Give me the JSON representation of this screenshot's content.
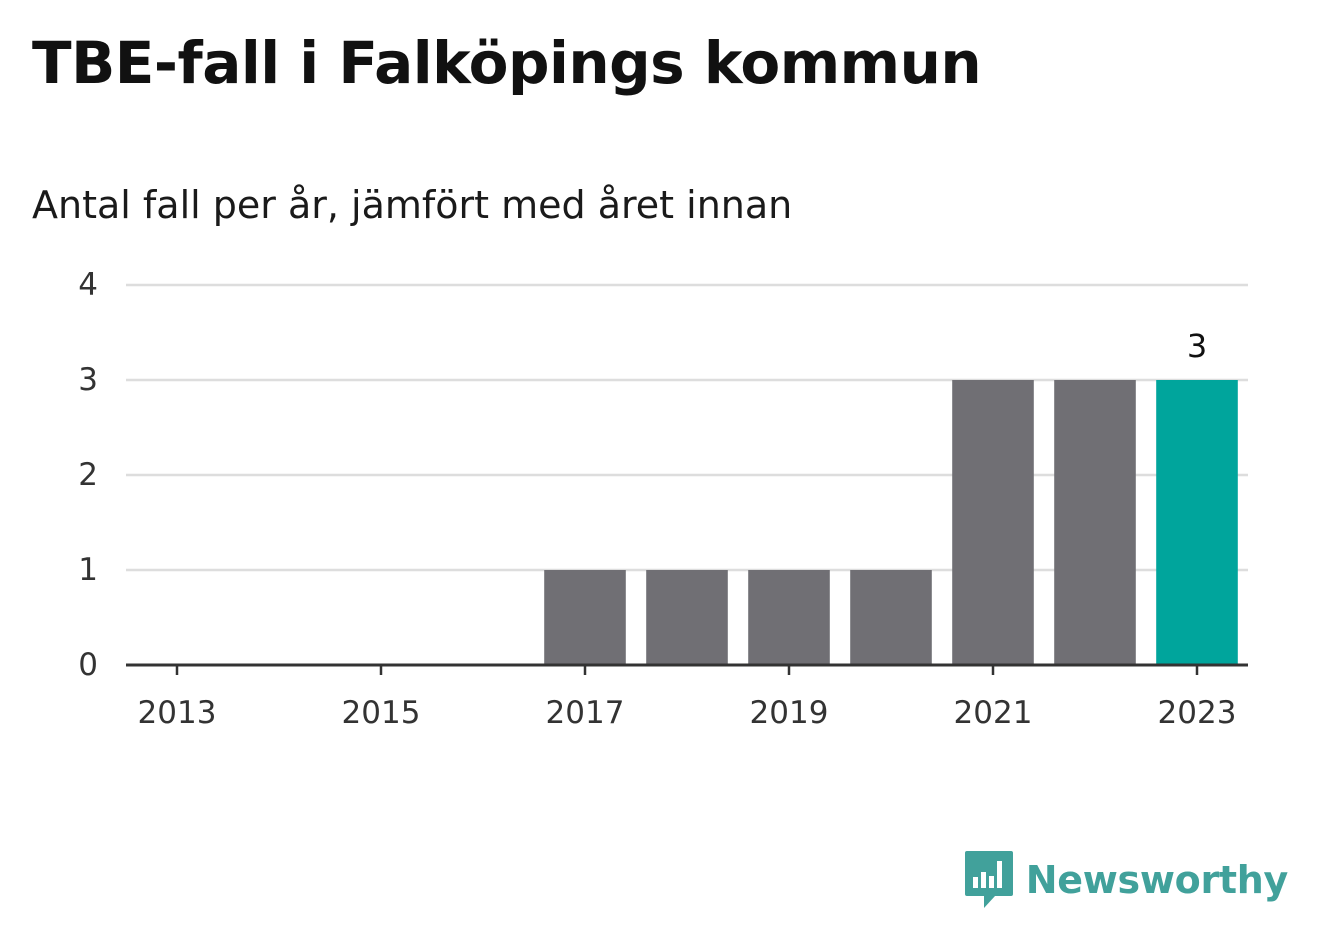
{
  "title": "TBE-fall i Falköpings kommun",
  "subtitle": "Antal fall per år, jämfört med året innan",
  "brand": {
    "name": "Newsworthy",
    "logo_icon": "newsworthy-bar-chart-speech-bubble-icon"
  },
  "colors": {
    "bar": "#706f74",
    "highlight": "#00a59c",
    "grid": "#dddddd",
    "axis": "#333333",
    "brand": "#41a19b"
  },
  "chart_data": {
    "type": "bar",
    "categories": [
      "2013",
      "2014",
      "2015",
      "2016",
      "2017",
      "2018",
      "2019",
      "2020",
      "2021",
      "2022",
      "2023"
    ],
    "x_tick_labels": [
      "2013",
      "2015",
      "2017",
      "2019",
      "2021",
      "2023"
    ],
    "values": [
      0,
      0,
      0,
      0,
      1,
      1,
      1,
      1,
      3,
      3,
      3
    ],
    "highlight_category": "2023",
    "annotations": [
      {
        "category": "2023",
        "label": "3"
      }
    ],
    "ylim": [
      0,
      4
    ],
    "yticks": [
      "0",
      "1",
      "2",
      "3",
      "4"
    ],
    "xlabel": "",
    "ylabel": "",
    "grid": true
  }
}
